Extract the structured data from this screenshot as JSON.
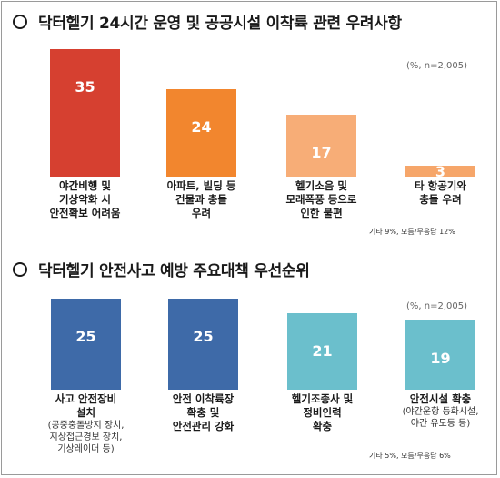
{
  "chart_data": [
    {
      "type": "bar",
      "title": "닥터헬기 24시간 운영 및 공공시설 이착륙 관련 우려사항",
      "unit": "(%, n=2,005)",
      "categories": [
        "야간비행 및\n기상악화 시\n안전확보 어려움",
        "아파트, 빌딩 등\n건물과 충돌\n우려",
        "헬기소음 및\n모래폭풍 등으로\n인한 불편",
        "타 항공기와\n충돌 우려"
      ],
      "subcategories": [
        "",
        "",
        "",
        ""
      ],
      "values": [
        35,
        24,
        17,
        3
      ],
      "colors": [
        "#d64030",
        "#f2862e",
        "#f7ad77",
        "#f6a66a"
      ],
      "ylim": [
        0,
        40
      ],
      "footnote": "기타 9%, 모름/무응답 12%"
    },
    {
      "type": "bar",
      "title": "닥터헬기 안전사고 예방 주요대책 우선순위",
      "unit": "(%, n=2,005)",
      "categories": [
        "사고 안전장비\n설치",
        "안전 이착륙장\n확충 및\n안전관리 강화",
        "헬기조종사 및\n정비인력\n확충",
        "안전시설 확충"
      ],
      "subcategories": [
        "(공중충돌방지 장치,\n지상접근경보 장치,\n기상레이더 등)",
        "",
        "",
        "(야간운항 등화시설,\n야간 유도등 등)"
      ],
      "values": [
        25,
        25,
        21,
        19
      ],
      "colors": [
        "#3e6aa8",
        "#3e6aa8",
        "#6bbfcc",
        "#6bbfcc"
      ],
      "ylim": [
        0,
        40
      ],
      "footnote": "기타 5%, 모름/무응답 6%"
    }
  ]
}
